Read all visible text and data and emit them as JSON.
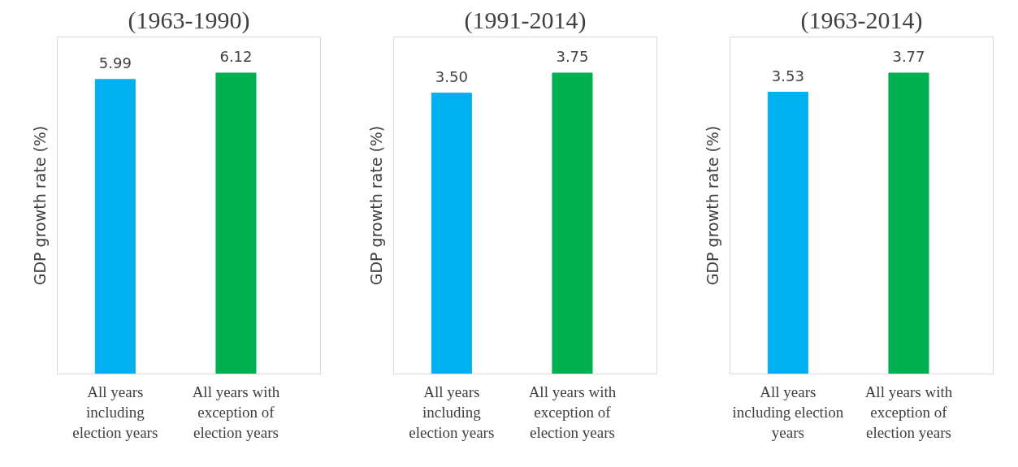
{
  "chart_data": [
    {
      "type": "bar",
      "title": "(1963-1990)",
      "ylabel": "GDP growth rate (%)",
      "categories": [
        "All years\nincluding\nelection years",
        "All years with\nexception of\nelection years"
      ],
      "values": [
        5.99,
        6.12
      ],
      "value_labels": [
        "5.99",
        "6.12"
      ],
      "colors": [
        "#00b0f0",
        "#00b050"
      ],
      "tick_labels": "x",
      "grid": false
    },
    {
      "type": "bar",
      "title": "(1991-2014)",
      "ylabel": "GDP growth rate (%)",
      "categories": [
        "All years\nincluding\nelection years",
        "All years with\nexception of\nelection years"
      ],
      "values": [
        3.5,
        3.75
      ],
      "value_labels": [
        "3.50",
        "3.75"
      ],
      "colors": [
        "#00b0f0",
        "#00b050"
      ],
      "tick_labels": "x",
      "grid": false
    },
    {
      "type": "bar",
      "title": "(1963-2014)",
      "ylabel": "GDP growth rate (%)",
      "categories": [
        "All years\nincluding election\nyears",
        "All years with\nexception of\nelection years"
      ],
      "values": [
        3.53,
        3.77
      ],
      "value_labels": [
        "3.53",
        "3.77"
      ],
      "colors": [
        "#00b0f0",
        "#00b050"
      ],
      "tick_labels": "x",
      "grid": false
    }
  ]
}
